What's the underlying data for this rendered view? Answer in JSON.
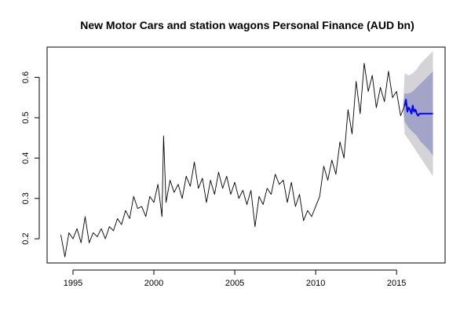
{
  "chart_data": {
    "type": "line",
    "title": "New Motor Cars and station wagons Personal Finance (AUD bn)",
    "xlabel": "",
    "ylabel": "",
    "xlim": [
      1993.4,
      2018.0
    ],
    "ylim": [
      0.14,
      0.675
    ],
    "x_ticks": [
      1995,
      2000,
      2005,
      2010,
      2015
    ],
    "x_tick_labels": [
      "1995",
      "2000",
      "2005",
      "2010",
      "2015"
    ],
    "y_ticks": [
      0.2,
      0.3,
      0.4,
      0.5,
      0.6
    ],
    "y_tick_labels": [
      "0.2",
      "0.3",
      "0.4",
      "0.5",
      "0.6"
    ],
    "grid": false,
    "legend": "none",
    "colors": {
      "history": "#000000",
      "forecast": "#0000ff",
      "band_80": "#a2a5c8",
      "band_95": "#d4d4d8"
    },
    "history": {
      "x": [
        1994.25,
        1994.5,
        1994.75,
        1995.0,
        1995.25,
        1995.5,
        1995.75,
        1996.0,
        1996.25,
        1996.5,
        1996.75,
        1997.0,
        1997.25,
        1997.5,
        1997.75,
        1998.0,
        1998.25,
        1998.5,
        1998.75,
        1999.0,
        1999.25,
        1999.5,
        1999.75,
        2000.0,
        2000.25,
        2000.5,
        2000.6,
        2000.75,
        2001.0,
        2001.25,
        2001.5,
        2001.75,
        2002.0,
        2002.25,
        2002.5,
        2002.75,
        2003.0,
        2003.25,
        2003.5,
        2003.75,
        2004.0,
        2004.25,
        2004.5,
        2004.75,
        2005.0,
        2005.25,
        2005.5,
        2005.75,
        2006.0,
        2006.25,
        2006.5,
        2006.75,
        2007.0,
        2007.25,
        2007.5,
        2007.75,
        2008.0,
        2008.25,
        2008.5,
        2008.75,
        2009.0,
        2009.25,
        2009.5,
        2009.75,
        2010.0,
        2010.25,
        2010.5,
        2010.75,
        2011.0,
        2011.25,
        2011.5,
        2011.75,
        2012.0,
        2012.25,
        2012.5,
        2012.75,
        2013.0,
        2013.25,
        2013.5,
        2013.75,
        2014.0,
        2014.25,
        2014.5,
        2014.75,
        2015.0,
        2015.25,
        2015.5
      ],
      "y": [
        0.21,
        0.155,
        0.215,
        0.2,
        0.225,
        0.19,
        0.255,
        0.19,
        0.215,
        0.205,
        0.225,
        0.2,
        0.23,
        0.22,
        0.25,
        0.235,
        0.27,
        0.25,
        0.305,
        0.275,
        0.28,
        0.255,
        0.305,
        0.29,
        0.335,
        0.255,
        0.455,
        0.29,
        0.345,
        0.315,
        0.335,
        0.3,
        0.355,
        0.33,
        0.39,
        0.325,
        0.35,
        0.29,
        0.345,
        0.31,
        0.365,
        0.325,
        0.355,
        0.31,
        0.34,
        0.3,
        0.32,
        0.285,
        0.32,
        0.23,
        0.305,
        0.285,
        0.325,
        0.31,
        0.36,
        0.335,
        0.345,
        0.29,
        0.34,
        0.28,
        0.31,
        0.245,
        0.27,
        0.255,
        0.28,
        0.305,
        0.38,
        0.345,
        0.395,
        0.36,
        0.44,
        0.4,
        0.52,
        0.46,
        0.59,
        0.51,
        0.635,
        0.565,
        0.605,
        0.525,
        0.575,
        0.54,
        0.615,
        0.55,
        0.565,
        0.505,
        0.53
      ]
    },
    "forecast": {
      "x": [
        2015.5,
        2015.58,
        2015.67,
        2015.75,
        2015.83,
        2015.92,
        2016.0,
        2016.08,
        2016.17,
        2016.25,
        2016.33,
        2016.42,
        2016.5,
        2016.6,
        2016.75,
        2017.0,
        2017.25
      ],
      "y": [
        0.53,
        0.545,
        0.515,
        0.525,
        0.52,
        0.51,
        0.53,
        0.515,
        0.52,
        0.51,
        0.505,
        0.51,
        0.51,
        0.51,
        0.51,
        0.51,
        0.51
      ]
    },
    "interval_80": {
      "x": [
        2015.4,
        2015.5,
        2015.75,
        2016.0,
        2016.25,
        2016.5,
        2016.75,
        2017.0,
        2017.25
      ],
      "lower": [
        0.53,
        0.49,
        0.475,
        0.465,
        0.455,
        0.44,
        0.43,
        0.42,
        0.405
      ],
      "upper": [
        0.53,
        0.56,
        0.56,
        0.565,
        0.575,
        0.585,
        0.595,
        0.605,
        0.615
      ]
    },
    "interval_95": {
      "x": [
        2015.4,
        2015.5,
        2015.75,
        2016.0,
        2016.25,
        2016.5,
        2016.75,
        2017.0,
        2017.25
      ],
      "lower": [
        0.53,
        0.46,
        0.445,
        0.43,
        0.415,
        0.4,
        0.385,
        0.37,
        0.355
      ],
      "upper": [
        0.53,
        0.61,
        0.605,
        0.61,
        0.62,
        0.635,
        0.645,
        0.655,
        0.665
      ]
    }
  }
}
